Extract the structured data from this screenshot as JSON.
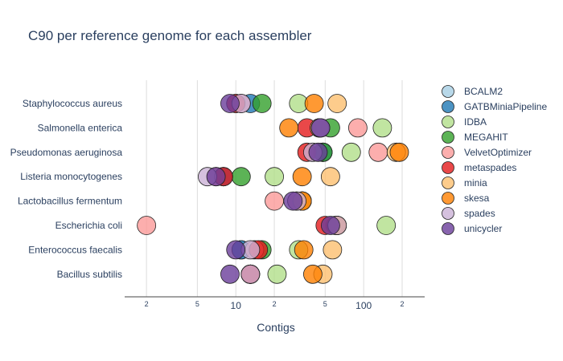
{
  "chart_data": {
    "type": "scatter",
    "title": "C90 per reference genome for each assembler",
    "xlabel": "Contigs",
    "ylabel": "",
    "xscale": "log",
    "xlim": [
      1.35,
      300
    ],
    "x_major_ticks": [
      {
        "value": 10,
        "label": "10"
      },
      {
        "value": 100,
        "label": "100"
      }
    ],
    "x_minor_ticks": [
      {
        "value": 2,
        "label": "2"
      },
      {
        "value": 5,
        "label": "5"
      },
      {
        "value": 20,
        "label": "2"
      },
      {
        "value": 50,
        "label": "5"
      },
      {
        "value": 200,
        "label": "2"
      }
    ],
    "categories": [
      "Bacillus subtilis",
      "Enterococcus faecalis",
      "Escherichia coli",
      "Lactobacillus fermentum",
      "Listeria monocytogenes",
      "Pseudomonas aeruginosa",
      "Salmonella enterica",
      "Staphylococcus aureus"
    ],
    "legend_position": "right",
    "series": [
      {
        "name": "BCALM2",
        "color": "#a6cee3",
        "values": [
          13,
          11,
          62,
          33,
          8,
          48,
          45,
          10
        ]
      },
      {
        "name": "GATBMiniaPipeline",
        "color": "#1f78b4",
        "values": [
          13,
          11,
          62,
          33,
          8,
          48,
          45,
          13
        ]
      },
      {
        "name": "IDBA",
        "color": "#b2df8a",
        "values": [
          21,
          31,
          150,
          33,
          20,
          80,
          140,
          31
        ]
      },
      {
        "name": "MEGAHIT",
        "color": "#33a02c",
        "values": [
          13,
          16,
          60,
          33,
          11,
          48,
          55,
          16
        ]
      },
      {
        "name": "VelvetOptimizer",
        "color": "#fb9a99",
        "values": [
          13,
          14,
          2,
          20,
          7,
          130,
          90,
          11
        ]
      },
      {
        "name": "metaspades",
        "color": "#e31a1c",
        "values": [
          13,
          15,
          50,
          30,
          8,
          36,
          36,
          10
        ]
      },
      {
        "name": "minia",
        "color": "#fdbf6f",
        "values": [
          48,
          57,
          62,
          33,
          55,
          180,
          45,
          62
        ]
      },
      {
        "name": "skesa",
        "color": "#ff7f00",
        "values": [
          40,
          34,
          62,
          33,
          33,
          190,
          26,
          41
        ]
      },
      {
        "name": "spades",
        "color": "#cab2d6",
        "values": [
          13,
          13,
          62,
          30,
          6,
          40,
          46,
          11
        ]
      },
      {
        "name": "unicycler",
        "color": "#6a3d9a",
        "values": [
          9,
          10,
          55,
          28,
          7,
          44,
          46,
          9
        ]
      }
    ]
  }
}
